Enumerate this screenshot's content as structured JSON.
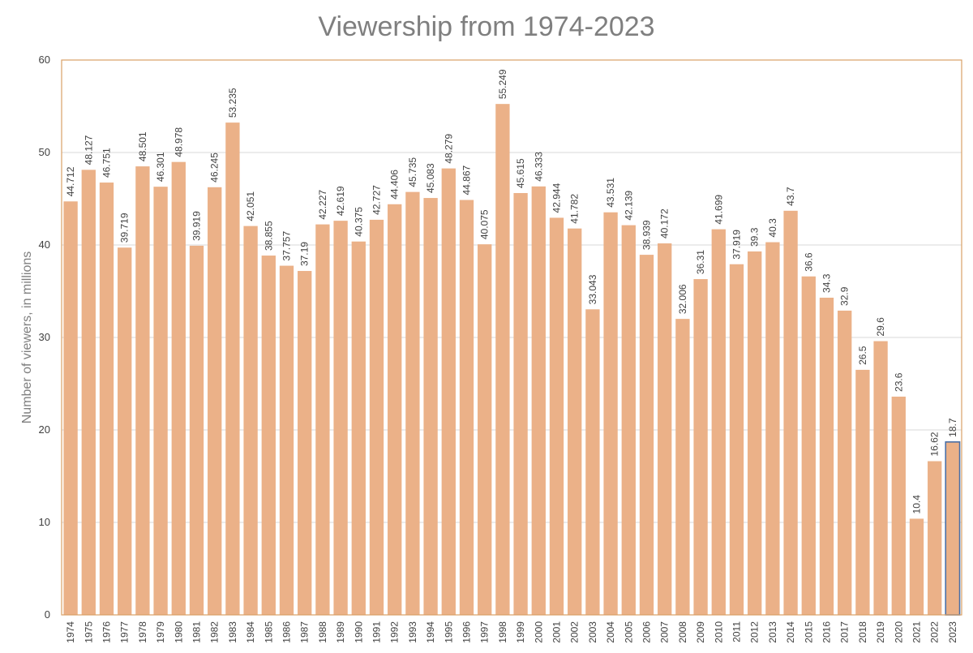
{
  "chart_data": {
    "type": "bar",
    "title": "Viewership from 1974-2023",
    "xlabel": "",
    "ylabel": "Number of viewers, in millions",
    "ylim": [
      0,
      60
    ],
    "yticks": [
      0,
      10,
      20,
      30,
      40,
      50,
      60
    ],
    "grid": true,
    "legend": "none",
    "colors": {
      "bar": "#ebb188",
      "highlight_border": "#4a6fa5",
      "frame": "#d9a066"
    },
    "highlighted_category": "2023",
    "categories": [
      "1974",
      "1975",
      "1976",
      "1977",
      "1978",
      "1979",
      "1980",
      "1981",
      "1982",
      "1983",
      "1984",
      "1985",
      "1986",
      "1987",
      "1988",
      "1989",
      "1990",
      "1991",
      "1992",
      "1993",
      "1994",
      "1995",
      "1996",
      "1997",
      "1998",
      "1999",
      "2000",
      "2001",
      "2002",
      "2003",
      "2004",
      "2005",
      "2006",
      "2007",
      "2008",
      "2009",
      "2010",
      "2011",
      "2012",
      "2013",
      "2014",
      "2015",
      "2016",
      "2017",
      "2018",
      "2019",
      "2020",
      "2021",
      "2022",
      "2023"
    ],
    "values": [
      44.712,
      48.127,
      46.751,
      39.719,
      48.501,
      46.301,
      48.978,
      39.919,
      46.245,
      53.235,
      42.051,
      38.855,
      37.757,
      37.19,
      42.227,
      42.619,
      40.375,
      42.727,
      44.406,
      45.735,
      45.083,
      48.279,
      44.867,
      40.075,
      55.249,
      45.615,
      46.333,
      42.944,
      41.782,
      33.043,
      43.531,
      42.139,
      38.939,
      40.172,
      32.006,
      36.31,
      41.699,
      37.919,
      39.3,
      40.3,
      43.7,
      36.6,
      34.3,
      32.9,
      26.5,
      29.6,
      23.6,
      10.4,
      16.62,
      18.7
    ],
    "data_labels": [
      "44.712",
      "48.127",
      "46.751",
      "39.719",
      "48.501",
      "46.301",
      "48.978",
      "39.919",
      "46.245",
      "53.235",
      "42.051",
      "38.855",
      "37.757",
      "37.19",
      "42.227",
      "42.619",
      "40.375",
      "42.727",
      "44.406",
      "45.735",
      "45.083",
      "48.279",
      "44.867",
      "40.075",
      "55.249",
      "45.615",
      "46.333",
      "42.944",
      "41.782",
      "33.043",
      "43.531",
      "42.139",
      "38.939",
      "40.172",
      "32.006",
      "36.31",
      "41.699",
      "37.919",
      "39.3",
      "40.3",
      "43.7",
      "36.6",
      "34.3",
      "32.9",
      "26.5",
      "29.6",
      "23.6",
      "10.4",
      "16.62",
      "18.7"
    ]
  }
}
